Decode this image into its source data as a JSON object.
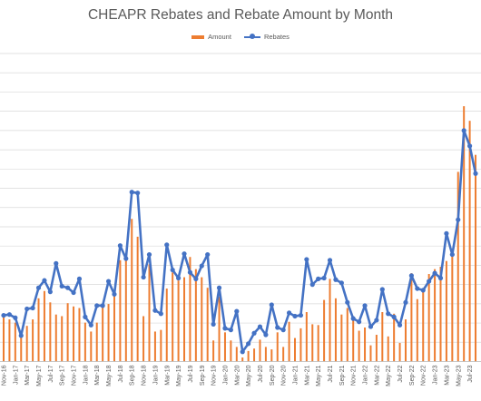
{
  "chart_data": {
    "type": "bar",
    "title": "CHEAPR Rebates and Rebate Amount by Month",
    "legend": {
      "position": "top",
      "entries": [
        "Amount",
        "Rebates"
      ]
    },
    "colors": {
      "Amount": "#ED7D31",
      "Rebates": "#4472C4",
      "grid": "#d9d9d9",
      "text": "#595959"
    },
    "grid": true,
    "ylim": [
      0,
      38
    ],
    "xlabel": "",
    "ylabel": "",
    "x_tick_labels": [
      "Nov-16",
      "Jan-17",
      "Mar-17",
      "May-17",
      "Jul-17",
      "Sep-17",
      "Nov-17",
      "Jan-18",
      "Mar-18",
      "May-18",
      "Jul-18",
      "Sep-18",
      "Nov-18",
      "Jan-19",
      "Mar-19",
      "May-19",
      "Jul-19",
      "Sep-19",
      "Nov-19",
      "Jan-20",
      "Mar-20",
      "May-20",
      "Jul-20",
      "Sep-20",
      "Nov-20",
      "Jan-21",
      "Mar-21",
      "May-21",
      "Jul-21",
      "Sep-21",
      "Nov-21",
      "Jan-22",
      "Mar-22",
      "May-22",
      "Jul-22",
      "Sep-22",
      "Nov-22",
      "Jan-23",
      "Mar-23",
      "May-23",
      "Jul-23"
    ],
    "categories": [
      "Nov-16",
      "Dec-16",
      "Jan-17",
      "Feb-17",
      "Mar-17",
      "Apr-17",
      "May-17",
      "Jun-17",
      "Jul-17",
      "Aug-17",
      "Sep-17",
      "Oct-17",
      "Nov-17",
      "Dec-17",
      "Jan-18",
      "Feb-18",
      "Mar-18",
      "Apr-18",
      "May-18",
      "Jun-18",
      "Jul-18",
      "Aug-18",
      "Sep-18",
      "Oct-18",
      "Nov-18",
      "Dec-18",
      "Jan-19",
      "Feb-19",
      "Mar-19",
      "Apr-19",
      "May-19",
      "Jun-19",
      "Jul-19",
      "Aug-19",
      "Sep-19",
      "Oct-19",
      "Nov-19",
      "Dec-19",
      "Jan-20",
      "Feb-20",
      "Mar-20",
      "Apr-20",
      "May-20",
      "Jun-20",
      "Jul-20",
      "Aug-20",
      "Sep-20",
      "Oct-20",
      "Nov-20",
      "Dec-20",
      "Jan-21",
      "Feb-21",
      "Mar-21",
      "Apr-21",
      "May-21",
      "Jun-21",
      "Jul-21",
      "Aug-21",
      "Sep-21",
      "Oct-21",
      "Nov-21",
      "Dec-21",
      "Jan-22",
      "Feb-22",
      "Mar-22",
      "Apr-22",
      "May-22",
      "Jun-22",
      "Jul-22",
      "Aug-22",
      "Sep-22",
      "Oct-22",
      "Nov-22",
      "Dec-22",
      "Jan-23",
      "Feb-23",
      "Mar-23",
      "Apr-23",
      "May-23",
      "Jun-23",
      "Jul-23",
      "Aug-23"
    ],
    "series": [
      {
        "name": "Amount",
        "type": "bar",
        "values": [
          5.9,
          5.2,
          4.8,
          3.1,
          4.4,
          5.2,
          7.8,
          8.7,
          7.3,
          5.8,
          5.6,
          7.2,
          6.8,
          6.6,
          4.8,
          3.7,
          4.8,
          6.7,
          7.1,
          8.6,
          12.5,
          13.0,
          17.6,
          15.4,
          5.6,
          12.0,
          3.7,
          3.9,
          9.0,
          11.0,
          10.0,
          10.4,
          12.9,
          11.4,
          10.4,
          9.1,
          2.6,
          8.0,
          3.6,
          2.6,
          1.8,
          0.5,
          1.3,
          1.6,
          2.7,
          1.8,
          1.5,
          3.6,
          1.8,
          4.9,
          2.9,
          4.1,
          6.1,
          4.6,
          4.5,
          7.6,
          10.2,
          7.8,
          5.8,
          6.6,
          5.6,
          3.8,
          4.2,
          2.0,
          3.3,
          6.1,
          3.1,
          5.9,
          2.3,
          5.2,
          10.9,
          7.7,
          8.9,
          10.8,
          11.4,
          11.7,
          12.4,
          13.9,
          23.4,
          31.5,
          29.7,
          25.5
        ]
      },
      {
        "name": "Rebates",
        "type": "line",
        "values": [
          5.7,
          5.8,
          5.4,
          3.2,
          6.5,
          6.6,
          9.1,
          10.0,
          8.6,
          12.1,
          9.3,
          9.1,
          8.5,
          10.2,
          5.5,
          4.5,
          6.9,
          6.9,
          9.9,
          8.3,
          14.3,
          12.7,
          20.9,
          20.8,
          10.4,
          13.2,
          6.3,
          5.9,
          14.4,
          11.3,
          10.3,
          13.3,
          11.0,
          10.2,
          11.8,
          13.2,
          4.6,
          9.1,
          4.1,
          3.9,
          6.2,
          1.2,
          2.2,
          3.5,
          4.3,
          3.3,
          7.0,
          4.2,
          3.9,
          6.0,
          5.6,
          5.7,
          12.6,
          9.5,
          10.2,
          10.3,
          12.5,
          10.1,
          9.7,
          7.3,
          5.3,
          4.9,
          6.9,
          4.3,
          5.1,
          8.9,
          5.9,
          5.5,
          4.5,
          7.3,
          10.6,
          9.0,
          8.8,
          9.9,
          10.9,
          10.3,
          15.8,
          13.2,
          17.5,
          28.5,
          26.6,
          23.2
        ]
      }
    ]
  }
}
